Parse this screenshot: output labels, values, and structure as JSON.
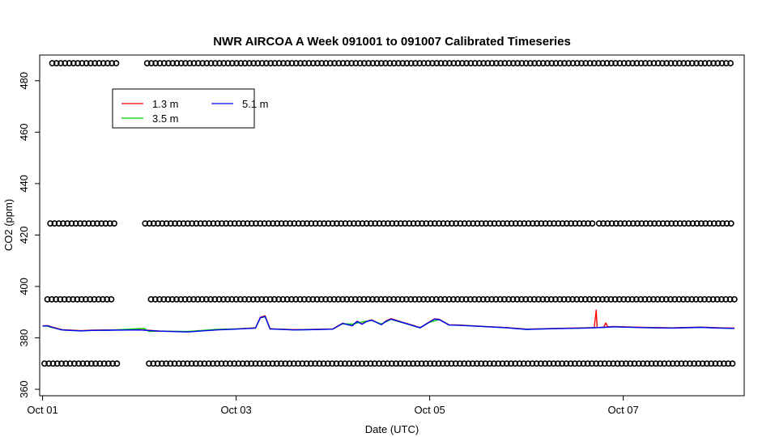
{
  "chart_data": {
    "type": "line",
    "title": "NWR AIRCOA A  Week 091001 to 091007  Calibrated Timeseries",
    "xlabel": "Date (UTC)",
    "ylabel": "CO2 (ppm)",
    "xlim": [
      -0.03,
      7.25
    ],
    "ylim": [
      357.5,
      490
    ],
    "x_ticks": [
      {
        "x": 0,
        "label": "Oct 01"
      },
      {
        "x": 2,
        "label": "Oct 03"
      },
      {
        "x": 4,
        "label": "Oct 05"
      },
      {
        "x": 6,
        "label": "Oct 07"
      }
    ],
    "y_ticks": [
      360,
      380,
      400,
      420,
      440,
      460,
      480
    ],
    "grid": false,
    "legend": {
      "placement": "top-left",
      "entries": [
        {
          "name": "1.3 m",
          "color": "#ff0000"
        },
        {
          "name": "3.5 m",
          "color": "#00cd00"
        },
        {
          "name": "5.1 m",
          "color": "#0000ff"
        }
      ]
    },
    "series": [
      {
        "name": "1.3 m",
        "color": "#ff0000",
        "x": [
          0.0,
          0.05,
          0.1,
          0.2,
          0.3,
          0.4,
          0.5,
          0.7,
          1.0,
          1.2,
          1.5,
          1.8,
          2.0,
          2.2,
          2.25,
          2.3,
          2.35,
          2.4,
          2.6,
          2.8,
          3.0,
          3.1,
          3.2,
          3.25,
          3.3,
          3.35,
          3.4,
          3.5,
          3.55,
          3.6,
          3.7,
          3.8,
          3.9,
          4.0,
          4.05,
          4.1,
          4.2,
          4.3,
          4.5,
          4.8,
          5.0,
          5.3,
          5.6,
          5.7,
          5.72,
          5.73,
          5.75,
          5.8,
          5.82,
          5.84,
          5.9,
          6.2,
          6.5,
          6.8,
          7.0,
          7.15
        ],
        "y": [
          384.7,
          384.8,
          384.2,
          383.2,
          383.0,
          382.8,
          383.0,
          383.1,
          383.2,
          382.7,
          382.4,
          383.2,
          383.5,
          383.9,
          388.0,
          388.6,
          383.6,
          383.5,
          383.2,
          383.3,
          383.5,
          385.7,
          384.8,
          386.5,
          385.4,
          386.5,
          387.0,
          385.2,
          386.6,
          387.5,
          386.3,
          385.2,
          384.0,
          386.3,
          387.4,
          387.2,
          385.1,
          385.0,
          384.6,
          384.0,
          383.4,
          383.7,
          383.9,
          384.0,
          390.8,
          384.0,
          384.0,
          384.2,
          385.8,
          384.3,
          384.4,
          384.1,
          383.9,
          384.2,
          383.9,
          383.8
        ]
      },
      {
        "name": "3.5 m",
        "color": "#00cd00",
        "x": [
          0.0,
          0.05,
          0.1,
          0.2,
          0.3,
          0.4,
          0.5,
          0.7,
          0.9,
          1.0,
          1.05,
          1.1,
          1.2,
          1.5,
          1.8,
          2.0,
          2.2,
          2.25,
          2.3,
          2.35,
          2.4,
          2.6,
          2.8,
          3.0,
          3.1,
          3.2,
          3.3,
          3.4,
          3.5,
          3.6,
          3.7,
          3.8,
          3.9,
          4.0,
          4.1,
          4.2,
          4.3,
          4.5,
          4.8,
          5.0,
          5.3,
          5.6,
          5.8,
          5.85,
          5.9,
          6.2,
          6.5,
          6.8,
          7.0,
          7.15
        ],
        "y": [
          384.6,
          384.6,
          384.0,
          383.1,
          382.9,
          382.7,
          382.9,
          383.0,
          383.4,
          383.6,
          383.7,
          382.5,
          382.6,
          382.5,
          383.3,
          383.5,
          383.8,
          387.8,
          388.2,
          383.5,
          383.4,
          383.1,
          383.2,
          383.4,
          385.5,
          385.4,
          386.2,
          386.8,
          385.4,
          387.2,
          386.1,
          385.0,
          383.9,
          386.1,
          387.1,
          385.0,
          384.9,
          384.5,
          383.9,
          383.3,
          383.6,
          383.8,
          384.1,
          384.2,
          384.3,
          384.0,
          383.8,
          384.1,
          383.8,
          383.7
        ]
      },
      {
        "name": "5.1 m",
        "color": "#0000ff",
        "x": [
          0.0,
          0.05,
          0.1,
          0.2,
          0.3,
          0.4,
          0.5,
          0.7,
          1.0,
          1.2,
          1.5,
          1.8,
          2.0,
          2.2,
          2.25,
          2.3,
          2.35,
          2.4,
          2.6,
          2.8,
          3.0,
          3.1,
          3.2,
          3.25,
          3.3,
          3.35,
          3.4,
          3.5,
          3.55,
          3.6,
          3.7,
          3.8,
          3.9,
          4.0,
          4.05,
          4.1,
          4.2,
          4.3,
          4.5,
          4.8,
          5.0,
          5.3,
          5.6,
          5.8,
          5.9,
          6.2,
          6.5,
          6.8,
          7.0,
          7.15
        ],
        "y": [
          384.6,
          384.7,
          384.1,
          383.1,
          382.9,
          382.7,
          382.9,
          383.0,
          383.1,
          382.6,
          382.3,
          383.1,
          383.4,
          383.8,
          387.9,
          388.3,
          383.5,
          383.4,
          383.1,
          383.2,
          383.4,
          385.6,
          384.7,
          386.4,
          385.3,
          386.4,
          386.9,
          385.1,
          386.5,
          387.3,
          386.2,
          385.1,
          383.9,
          386.2,
          387.3,
          387.1,
          385.0,
          384.9,
          384.5,
          383.9,
          383.3,
          383.6,
          383.8,
          384.1,
          384.3,
          384.0,
          383.8,
          384.1,
          383.8,
          383.7
        ]
      }
    ],
    "flag_points": {
      "marker": "open-circle",
      "color": "#000000",
      "levels": [
        {
          "y": 486.8,
          "segments": [
            [
              0.1,
              0.8
            ],
            [
              1.08,
              7.15
            ]
          ]
        },
        {
          "y": 424.5,
          "segments": [
            [
              0.08,
              0.75
            ],
            [
              1.06,
              5.7
            ],
            [
              5.75,
              7.15
            ]
          ]
        },
        {
          "y": 395.0,
          "segments": [
            [
              0.05,
              0.72
            ],
            [
              1.12,
              7.15
            ]
          ]
        },
        {
          "y": 370.0,
          "segments": [
            [
              0.02,
              0.78
            ],
            [
              1.1,
              7.15
            ]
          ]
        }
      ],
      "spacing": 0.044
    }
  }
}
